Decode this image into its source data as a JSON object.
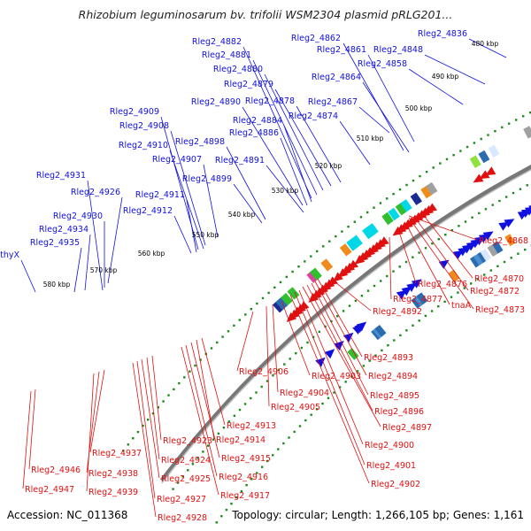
{
  "title": "Rhizobium leguminosarum bv. trifolii WSM2304 plasmid pRLG201...",
  "footer": {
    "accession": "Accession: NC_011368",
    "stats": "Topology: circular; Length: 1,266,105 bp; Genes: 1,161"
  },
  "colors": {
    "forward": "#1010e0",
    "reverse": "#e01010",
    "backbone": "#777777",
    "dot_ring": "#1c8a1c",
    "cog_palette": [
      "#2b6cb0",
      "#4a8fd0",
      "#f08c1c",
      "#2fbf2f",
      "#90e040",
      "#00d8e8",
      "#e040a0",
      "#a0a0a0",
      "#1a2a90",
      "#d8e8ff"
    ]
  },
  "tick_labels": [
    "480 kbp",
    "490 kbp",
    "500 kbp",
    "510 kbp",
    "520 kbp",
    "530 kbp",
    "540 kbp",
    "550 kbp",
    "560 kbp",
    "570 kbp",
    "580 kbp"
  ],
  "forward_genes": [
    "Rleg2_4836",
    "Rleg2_4848",
    "Rleg2_4858",
    "Rleg2_4861",
    "Rleg2_4862",
    "Rleg2_4864",
    "Rleg2_4867",
    "Rleg2_4874",
    "Rleg2_4878",
    "Rleg2_4879",
    "Rleg2_4880",
    "Rleg2_4881",
    "Rleg2_4882",
    "Rleg2_4884",
    "Rleg2_4886",
    "Rleg2_4890",
    "Rleg2_4891",
    "Rleg2_4898",
    "Rleg2_4899",
    "Rleg2_4907",
    "Rleg2_4908",
    "Rleg2_4909",
    "Rleg2_4910",
    "Rleg2_4911",
    "Rleg2_4912",
    "Rleg2_4926",
    "Rleg2_4930",
    "Rleg2_4931",
    "Rleg2_4934",
    "Rleg2_4935",
    "thyX"
  ],
  "reverse_genes": [
    "Rleg2_4868",
    "Rleg2_4870",
    "Rleg2_4872",
    "Rleg2_4873",
    "tnaA",
    "Rleg2_4876",
    "Rleg2_4877",
    "Rleg2_4892",
    "Rleg2_4893",
    "Rleg2_4894",
    "Rleg2_4895",
    "Rleg2_4896",
    "Rleg2_4897",
    "Rleg2_4900",
    "Rleg2_4901",
    "Rleg2_4902",
    "Rleg2_4903",
    "Rleg2_4904",
    "Rleg2_4905",
    "Rleg2_4906",
    "Rleg2_4913",
    "Rleg2_4914",
    "Rleg2_4915",
    "Rleg2_4916",
    "Rleg2_4917",
    "Rleg2_4923",
    "Rleg2_4924",
    "Rleg2_4925",
    "Rleg2_4927",
    "Rleg2_4928",
    "Rleg2_4937",
    "Rleg2_4938",
    "Rleg2_4939",
    "Rleg2_4946",
    "Rleg2_4947"
  ]
}
